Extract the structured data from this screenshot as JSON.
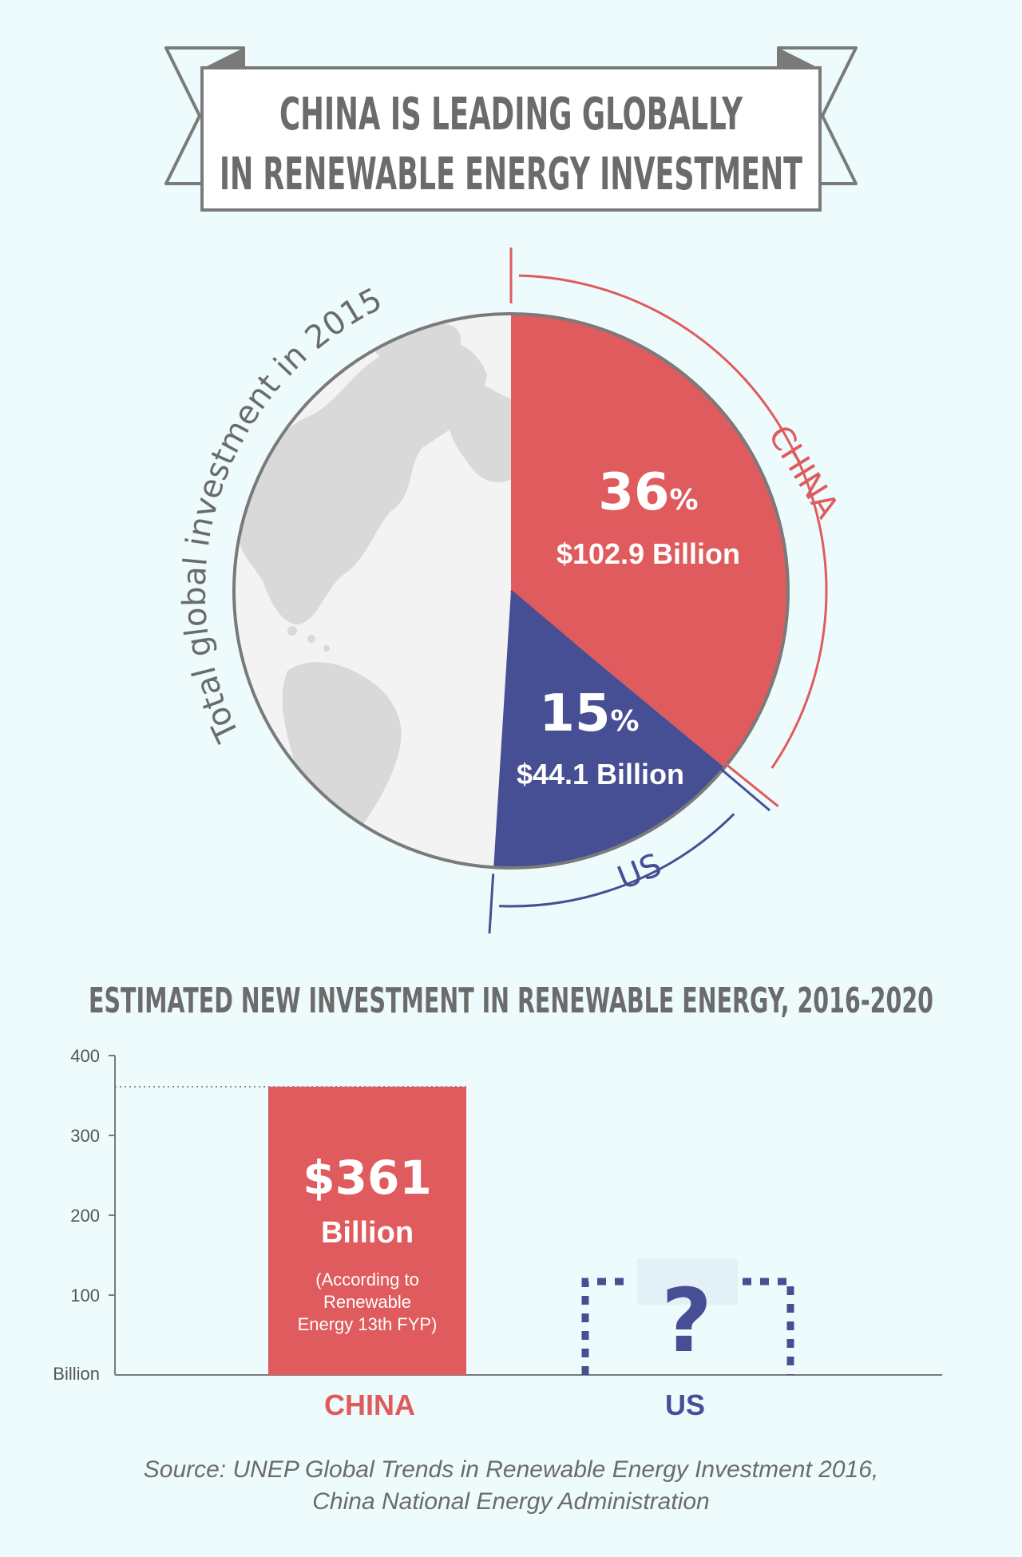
{
  "title": {
    "line1": "CHINA IS LEADING GLOBALLY",
    "line2": "IN RENEWABLE ENERGY INVESTMENT"
  },
  "colors": {
    "background": "#eefbfc",
    "china": "#e05b5d",
    "us": "#474f94",
    "text_gray": "#6b6b6b",
    "globe_land": "#d9d9d9",
    "globe_sea": "#f3f3f3"
  },
  "chart_data": [
    {
      "type": "pie",
      "title": "Total global investment in 2015",
      "slices": [
        {
          "name": "CHINA",
          "percent": 36,
          "percent_label": "36",
          "percent_sign": "%",
          "amount_label": "$102.9 Billion",
          "value": 102.9
        },
        {
          "name": "US",
          "percent": 15,
          "percent_label": "15",
          "percent_sign": "%",
          "amount_label": "$44.1 Billion",
          "value": 44.1
        }
      ]
    },
    {
      "type": "bar",
      "title": "ESTIMATED NEW INVESTMENT IN RENEWABLE ENERGY, 2016-2020",
      "ylabel": "Billion",
      "ylim": [
        0,
        400
      ],
      "yticks": [
        100,
        200,
        300,
        400
      ],
      "grid": false,
      "categories": [
        "CHINA",
        "US"
      ],
      "values": [
        361,
        null
      ],
      "bars": [
        {
          "category": "CHINA",
          "value": 361,
          "value_label": "$361",
          "unit_label": "Billion",
          "note_lines": [
            "(According to",
            "Renewable",
            "Energy 13th FYP)"
          ]
        },
        {
          "category": "US",
          "value": null,
          "placeholder_label": "?"
        }
      ]
    }
  ],
  "source": {
    "line1": "Source: UNEP Global Trends in Renewable Energy Investment 2016,",
    "line2": "China National Energy Administration"
  }
}
